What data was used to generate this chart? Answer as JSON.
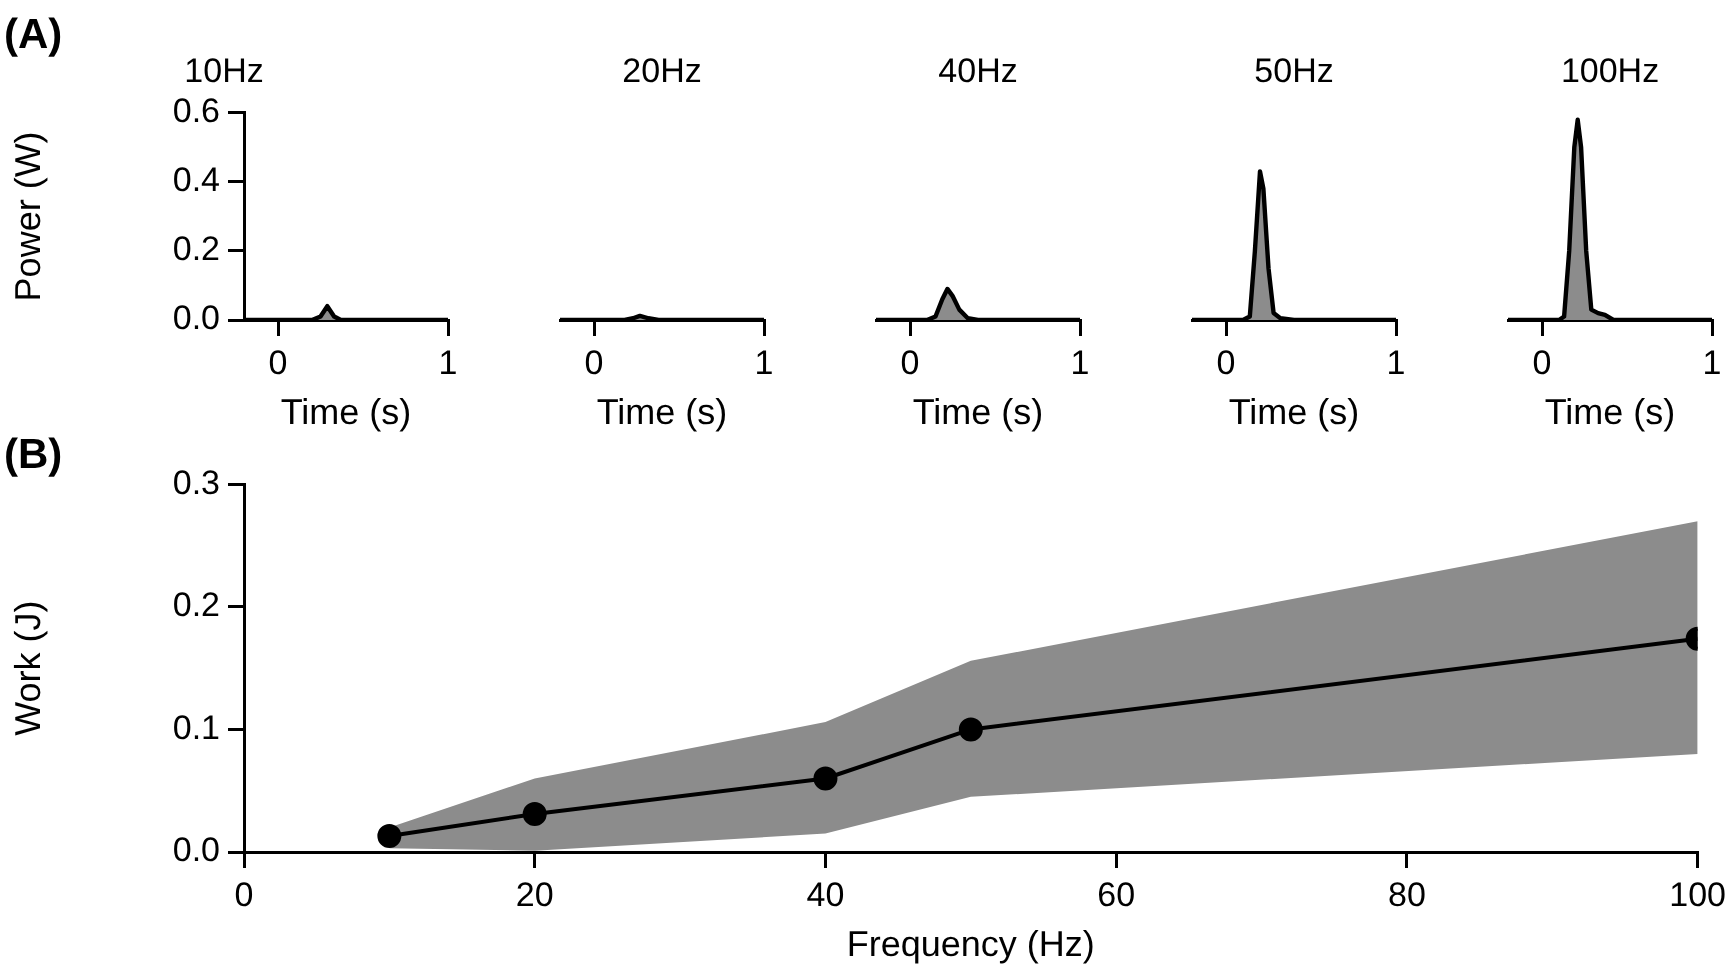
{
  "chart_data": [
    {
      "type": "area",
      "title": "10Hz",
      "xlabel": "Time (s)",
      "ylabel": "Power (W)",
      "annotations": [
        "(A)"
      ],
      "xlim": [
        -0.2,
        1
      ],
      "xticks": [
        0,
        1
      ],
      "ylim": [
        0,
        0.6
      ],
      "yticks": [
        {
          "value": 0,
          "label": "0.0"
        },
        0.2,
        0.4,
        0.6
      ],
      "grid": false,
      "legend": false,
      "series": [
        {
          "color": "#8c8c8c",
          "x": [
            -0.2,
            0,
            0.2,
            0.25,
            0.29,
            0.33,
            0.37,
            0.5,
            0.7,
            1
          ],
          "values": [
            0,
            0,
            0,
            0.01,
            0.04,
            0.01,
            0,
            0,
            0,
            0
          ]
        }
      ]
    },
    {
      "type": "area",
      "title": "20Hz",
      "xlabel": "Time (s)",
      "xlim": [
        -0.2,
        1
      ],
      "xticks": [
        0,
        1
      ],
      "ylim": [
        0,
        0.6
      ],
      "tick_labels": "x",
      "grid": false,
      "legend": false,
      "series": [
        {
          "color": "#8c8c8c",
          "x": [
            -0.2,
            0,
            0.18,
            0.23,
            0.27,
            0.32,
            0.38,
            0.5,
            0.7,
            1
          ],
          "values": [
            0,
            0,
            0,
            0.005,
            0.012,
            0.005,
            0,
            0,
            0,
            0
          ]
        }
      ]
    },
    {
      "type": "area",
      "title": "40Hz",
      "xlabel": "Time (s)",
      "xlim": [
        -0.2,
        1
      ],
      "xticks": [
        0,
        1
      ],
      "ylim": [
        0,
        0.6
      ],
      "tick_labels": "x",
      "grid": false,
      "legend": false,
      "series": [
        {
          "color": "#8c8c8c",
          "x": [
            -0.2,
            0,
            0.1,
            0.15,
            0.19,
            0.22,
            0.25,
            0.29,
            0.34,
            0.4,
            0.6,
            1
          ],
          "values": [
            0,
            0,
            0,
            0.01,
            0.06,
            0.09,
            0.07,
            0.03,
            0.005,
            0,
            0,
            0
          ]
        }
      ]
    },
    {
      "type": "area",
      "title": "50Hz",
      "xlabel": "Time (s)",
      "xlim": [
        -0.2,
        1
      ],
      "xticks": [
        0,
        1
      ],
      "ylim": [
        0,
        0.6
      ],
      "tick_labels": "x",
      "grid": false,
      "legend": false,
      "series": [
        {
          "color": "#8c8c8c",
          "x": [
            -0.2,
            0,
            0.1,
            0.14,
            0.17,
            0.2,
            0.22,
            0.25,
            0.28,
            0.32,
            0.4,
            0.6,
            1
          ],
          "values": [
            0,
            0,
            0,
            0.01,
            0.2,
            0.43,
            0.38,
            0.15,
            0.02,
            0.005,
            0,
            0,
            0
          ]
        }
      ]
    },
    {
      "type": "area",
      "title": "100Hz",
      "xlabel": "Time (s)",
      "xlim": [
        -0.2,
        1
      ],
      "xticks": [
        0,
        1
      ],
      "ylim": [
        0,
        0.6
      ],
      "tick_labels": "x",
      "grid": false,
      "legend": false,
      "series": [
        {
          "color": "#8c8c8c",
          "x": [
            -0.2,
            0,
            0.1,
            0.13,
            0.16,
            0.19,
            0.21,
            0.23,
            0.26,
            0.29,
            0.33,
            0.37,
            0.42,
            0.5,
            0.7,
            1
          ],
          "values": [
            0,
            0,
            0,
            0.01,
            0.2,
            0.5,
            0.58,
            0.5,
            0.2,
            0.03,
            0.02,
            0.015,
            0,
            0,
            0,
            0
          ]
        }
      ]
    },
    {
      "type": "line",
      "xlabel": "Frequency (Hz)",
      "ylabel": "Work (J)",
      "annotations": [
        "(B)"
      ],
      "xlim": [
        0,
        100
      ],
      "xticks": [
        0,
        20,
        40,
        60,
        80,
        100
      ],
      "ylim": [
        0,
        0.3
      ],
      "yticks": [
        {
          "value": 0,
          "label": "0.0"
        },
        0.1,
        0.2,
        0.3
      ],
      "grid": false,
      "legend": false,
      "marker": "circle",
      "line_style": "solid",
      "series": [
        {
          "color": "#000000",
          "x": [
            10,
            20,
            40,
            50,
            100
          ],
          "values": [
            0.013,
            0.031,
            0.06,
            0.1,
            0.174
          ],
          "lower": [
            0.003,
            0.001,
            0.015,
            0.045,
            0.08
          ],
          "upper": [
            0.02,
            0.06,
            0.106,
            0.156,
            0.27
          ]
        }
      ]
    }
  ]
}
